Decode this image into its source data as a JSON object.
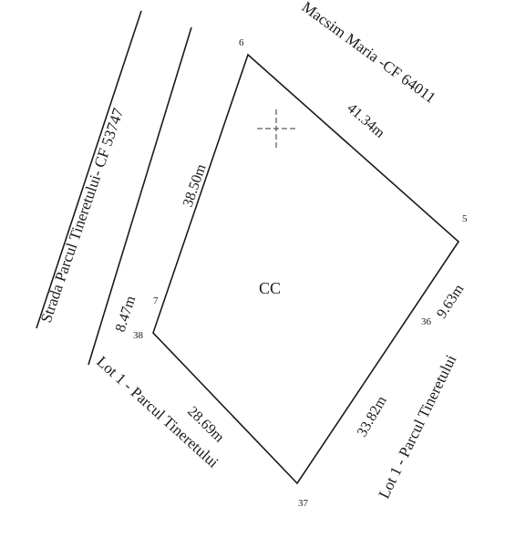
{
  "streets": {
    "left": "Strada Parcul Tineretului- CF 53747",
    "top_right": "Macsim Maria -CF 64011",
    "bottom_left": "Lot 1 - Parcul Tineretului",
    "right": "Lot 1 - Parcul Tineretului"
  },
  "parcel": {
    "label": "CC",
    "points": [
      "6",
      "5",
      "36",
      "37",
      "38",
      "7"
    ],
    "segments": {
      "seg_6_5": "41.34m",
      "seg_5_36": "9.63m",
      "seg_36_37": "33.82m",
      "seg_37_38": "28.69m",
      "seg_38_7": "8.47m",
      "seg_7_6": "38.50m"
    }
  }
}
